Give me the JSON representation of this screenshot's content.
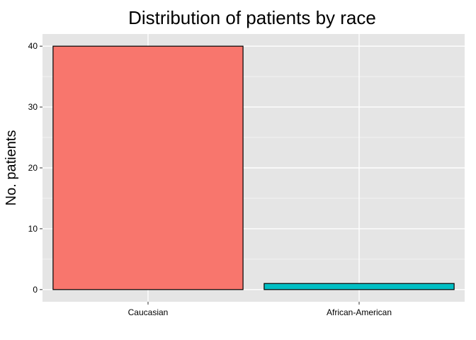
{
  "chart_data": {
    "type": "bar",
    "title": "Distribution of patients by race",
    "xlabel": "",
    "ylabel": "No. patients",
    "categories": [
      "Caucasian",
      "African-American"
    ],
    "values": [
      40,
      1
    ],
    "bar_colors": [
      "#f8766d",
      "#00bfc4"
    ],
    "bar_outline_color": "#000000",
    "panel_background": "#e5e5e5",
    "grid": true,
    "grid_color": "#ffffff",
    "ylim": [
      -2,
      42
    ],
    "yticks": [
      0,
      10,
      20,
      30,
      40
    ],
    "legend": "none"
  }
}
